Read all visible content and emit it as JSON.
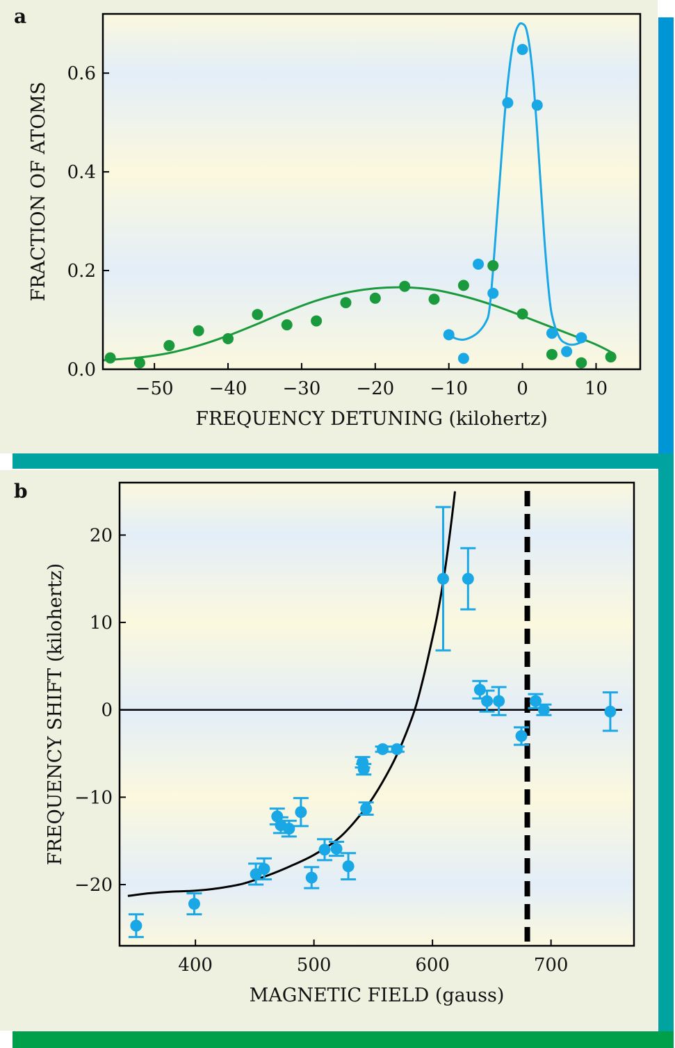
{
  "colors": {
    "panel_bg": "#eef1df",
    "bar_cyan": "#0096d6",
    "bar_teal": "#00a3a0",
    "bar_green": "#00a04a",
    "band_yellow": "#fbf8de",
    "band_blue": "#e3eef8",
    "blue_series": "#1aa7e6",
    "green_series": "#1a9a3c",
    "curve_black": "#000000"
  },
  "chart_data": [
    {
      "panel_label": "a",
      "type": "scatter",
      "title": "",
      "xlabel": "FREQUENCY DETUNING (kilohertz)",
      "ylabel": "FRACTION OF ATOMS",
      "xlim": [
        -57,
        16
      ],
      "ylim": [
        0,
        0.72
      ],
      "xticks": [
        -50,
        -40,
        -30,
        -20,
        -10,
        0,
        10
      ],
      "xtick_labels": [
        "−50",
        "−40",
        "−30",
        "−20",
        "−10",
        "0",
        "10"
      ],
      "yticks": [
        0,
        0.2,
        0.4,
        0.6
      ],
      "ytick_labels": [
        "0.0",
        "0.2",
        "0.4",
        "0.6"
      ],
      "series": [
        {
          "color_key": "green_series",
          "points": [
            [
              -56,
              0.023
            ],
            [
              -52,
              0.013
            ],
            [
              -48,
              0.048
            ],
            [
              -44,
              0.078
            ],
            [
              -40,
              0.062
            ],
            [
              -36,
              0.111
            ],
            [
              -32,
              0.09
            ],
            [
              -28,
              0.098
            ],
            [
              -24,
              0.135
            ],
            [
              -20,
              0.144
            ],
            [
              -16,
              0.168
            ],
            [
              -12,
              0.142
            ],
            [
              -8,
              0.17
            ],
            [
              -4,
              0.21
            ],
            [
              0,
              0.112
            ],
            [
              4,
              0.03
            ],
            [
              8,
              0.013
            ],
            [
              12,
              0.025
            ]
          ],
          "fit_curve": [
            [
              -57,
              0.018
            ],
            [
              -52,
              0.024
            ],
            [
              -48,
              0.033
            ],
            [
              -44,
              0.048
            ],
            [
              -40,
              0.068
            ],
            [
              -36,
              0.092
            ],
            [
              -32,
              0.117
            ],
            [
              -28,
              0.139
            ],
            [
              -24,
              0.155
            ],
            [
              -20,
              0.164
            ],
            [
              -16,
              0.166
            ],
            [
              -12,
              0.161
            ],
            [
              -8,
              0.148
            ],
            [
              -4,
              0.13
            ],
            [
              0,
              0.108
            ],
            [
              4,
              0.085
            ],
            [
              8,
              0.062
            ],
            [
              10,
              0.05
            ],
            [
              12,
              0.035
            ],
            [
              12.5,
              0.028
            ]
          ]
        },
        {
          "color_key": "blue_series",
          "points": [
            [
              -10,
              0.07
            ],
            [
              -8,
              0.022
            ],
            [
              -6,
              0.213
            ],
            [
              -4,
              0.154
            ],
            [
              -2,
              0.54
            ],
            [
              0,
              0.648
            ],
            [
              2,
              0.535
            ],
            [
              4,
              0.073
            ],
            [
              6,
              0.036
            ],
            [
              8,
              0.064
            ]
          ],
          "fit_curve": [
            [
              -10,
              0.07
            ],
            [
              -9,
              0.062
            ],
            [
              -8,
              0.06
            ],
            [
              -7,
              0.065
            ],
            [
              -6,
              0.075
            ],
            [
              -5,
              0.095
            ],
            [
              -4.5,
              0.12
            ],
            [
              -4,
              0.2
            ],
            [
              -3.5,
              0.3
            ],
            [
              -3,
              0.4
            ],
            [
              -2.5,
              0.5
            ],
            [
              -2,
              0.58
            ],
            [
              -1.5,
              0.64
            ],
            [
              -1,
              0.68
            ],
            [
              -0.5,
              0.698
            ],
            [
              0,
              0.7
            ],
            [
              0.5,
              0.69
            ],
            [
              1,
              0.65
            ],
            [
              1.5,
              0.58
            ],
            [
              2,
              0.48
            ],
            [
              2.5,
              0.37
            ],
            [
              3,
              0.26
            ],
            [
              3.5,
              0.17
            ],
            [
              4,
              0.11
            ],
            [
              5,
              0.065
            ],
            [
              6,
              0.052
            ],
            [
              7,
              0.05
            ],
            [
              8,
              0.055
            ]
          ]
        }
      ]
    },
    {
      "panel_label": "b",
      "type": "scatter",
      "title": "",
      "xlabel": "MAGNETIC FIELD (gauss)",
      "ylabel": "FREQUENCY SHIFT (kilohertz)",
      "xlim": [
        336,
        770
      ],
      "ylim": [
        -27,
        26
      ],
      "xticks": [
        400,
        500,
        600,
        700
      ],
      "xtick_labels": [
        "400",
        "500",
        "600",
        "700"
      ],
      "yticks": [
        -20,
        -10,
        0,
        10,
        20
      ],
      "ytick_labels": [
        "−20",
        "−10",
        "0",
        "10",
        "20"
      ],
      "zero_line": 0,
      "dashed_vline_x": 680,
      "points": [
        {
          "x": 350,
          "y": -24.7,
          "err": 1.3
        },
        {
          "x": 399,
          "y": -22.2,
          "err": 1.2
        },
        {
          "x": 451,
          "y": -18.8,
          "err": 1.2
        },
        {
          "x": 458,
          "y": -18.2,
          "err": 1.2
        },
        {
          "x": 469,
          "y": -12.2,
          "err": 0.9
        },
        {
          "x": 472,
          "y": -13.2,
          "err": 0.9
        },
        {
          "x": 479,
          "y": -13.6,
          "err": 0.9
        },
        {
          "x": 489,
          "y": -11.7,
          "err": 1.6
        },
        {
          "x": 498,
          "y": -19.2,
          "err": 1.2
        },
        {
          "x": 509,
          "y": -16.0,
          "err": 1.2
        },
        {
          "x": 519,
          "y": -15.9,
          "err": 0.8
        },
        {
          "x": 529,
          "y": -17.9,
          "err": 1.5
        },
        {
          "x": 541,
          "y": -6.0,
          "err": 0.6
        },
        {
          "x": 542,
          "y": -6.8,
          "err": 0.6
        },
        {
          "x": 544,
          "y": -11.3,
          "err": 0.7
        },
        {
          "x": 558,
          "y": -4.5,
          "err": 0.3
        },
        {
          "x": 570,
          "y": -4.5,
          "err": 0.3
        },
        {
          "x": 609,
          "y": 15.0,
          "err": 8.2
        },
        {
          "x": 630,
          "y": 15.0,
          "err": 3.5
        },
        {
          "x": 640,
          "y": 2.3,
          "err": 1.0
        },
        {
          "x": 646,
          "y": 1.0,
          "err": 1.2
        },
        {
          "x": 656,
          "y": 1.0,
          "err": 1.6
        },
        {
          "x": 675,
          "y": -3.0,
          "err": 1.0
        },
        {
          "x": 687,
          "y": 1.0,
          "err": 0.8
        },
        {
          "x": 694,
          "y": 0.0,
          "err": 0.6
        },
        {
          "x": 750,
          "y": -0.2,
          "err": 2.2
        }
      ],
      "fit_curve": [
        [
          343,
          -21.3
        ],
        [
          360,
          -21.0
        ],
        [
          380,
          -20.8
        ],
        [
          400,
          -20.7
        ],
        [
          420,
          -20.4
        ],
        [
          440,
          -19.9
        ],
        [
          460,
          -19.0
        ],
        [
          480,
          -17.9
        ],
        [
          500,
          -16.6
        ],
        [
          520,
          -14.8
        ],
        [
          535,
          -12.7
        ],
        [
          550,
          -10.0
        ],
        [
          565,
          -6.5
        ],
        [
          575,
          -3.6
        ],
        [
          585,
          0.0
        ],
        [
          592,
          3.5
        ],
        [
          598,
          7.0
        ],
        [
          604,
          10.8
        ],
        [
          610,
          15.5
        ],
        [
          615,
          20.5
        ],
        [
          619,
          25.0
        ]
      ]
    }
  ]
}
